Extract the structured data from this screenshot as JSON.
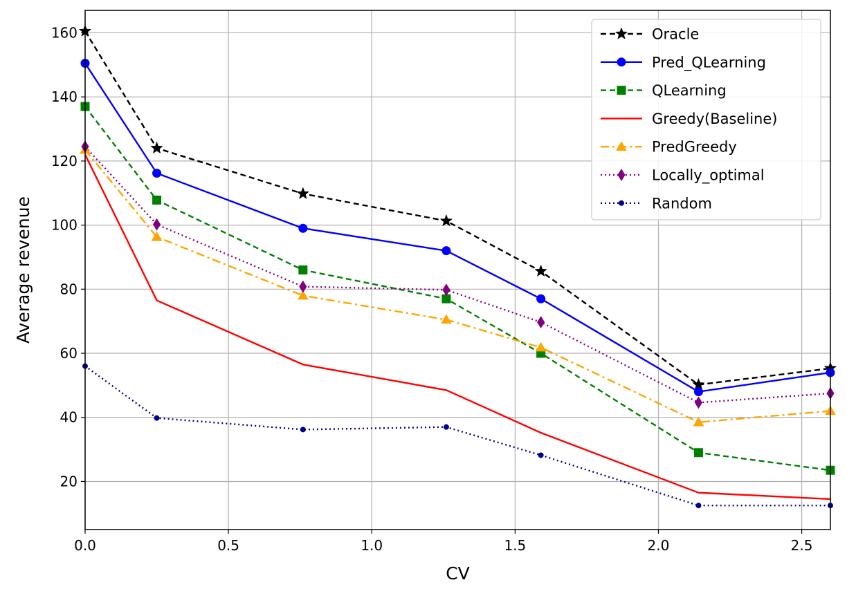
{
  "chart_data": {
    "type": "line",
    "title": "",
    "xlabel": "CV",
    "ylabel": "Average revenue",
    "xlim": [
      0.0,
      2.6
    ],
    "ylim": [
      5,
      167
    ],
    "grid": true,
    "legend_position": "top-right",
    "x_ticks": [
      0.0,
      0.5,
      1.0,
      1.5,
      2.0,
      2.5
    ],
    "x_tick_labels": [
      "0.0",
      "0.5",
      "1.0",
      "1.5",
      "2.0",
      "2.5"
    ],
    "y_ticks": [
      20,
      40,
      60,
      80,
      100,
      120,
      140,
      160
    ],
    "y_tick_labels": [
      "20",
      "40",
      "60",
      "80",
      "100",
      "120",
      "140",
      "160"
    ],
    "x": [
      0.0,
      0.25,
      0.76,
      1.26,
      1.59,
      2.14,
      2.6
    ],
    "series": [
      {
        "name": "Oracle",
        "values": [
          160.5,
          124.0,
          109.8,
          101.3,
          85.6,
          50.2,
          55.3
        ],
        "color": "#000000",
        "dash": "8,5",
        "marker": "star",
        "marker_size": 9
      },
      {
        "name": "Pred_QLearning",
        "values": [
          150.5,
          116.2,
          99.0,
          92.0,
          77.0,
          48.0,
          54.0
        ],
        "color": "#0000ff",
        "dash": "",
        "marker": "circle",
        "marker_size": 6
      },
      {
        "name": "QLearning",
        "values": [
          137.0,
          107.8,
          86.0,
          77.0,
          60.0,
          29.0,
          23.5
        ],
        "color": "#008000",
        "dash": "8,5",
        "marker": "square",
        "marker_size": 6
      },
      {
        "name": "Greedy(Baseline)",
        "values": [
          122.0,
          76.5,
          56.5,
          48.5,
          35.2,
          16.5,
          14.5
        ],
        "color": "#ff0000",
        "dash": "",
        "marker": "none",
        "marker_size": 0
      },
      {
        "name": "PredGreedy",
        "values": [
          123.5,
          96.3,
          78.0,
          70.5,
          61.8,
          38.5,
          42.0
        ],
        "color": "#ffa500",
        "dash": "12,5,3,5",
        "marker": "triangle",
        "marker_size": 7
      },
      {
        "name": "Locally_optimal",
        "values": [
          124.5,
          100.2,
          80.8,
          79.8,
          69.7,
          44.6,
          47.5
        ],
        "color": "#800080",
        "dash": "2,4",
        "marker": "diamond",
        "marker_size": 8
      },
      {
        "name": "Random",
        "values": [
          56.0,
          39.8,
          36.2,
          37.0,
          28.2,
          12.5,
          12.5
        ],
        "color": "#00008b",
        "dash": "2,4",
        "marker": "smallcircle",
        "marker_size": 3.5
      }
    ]
  }
}
